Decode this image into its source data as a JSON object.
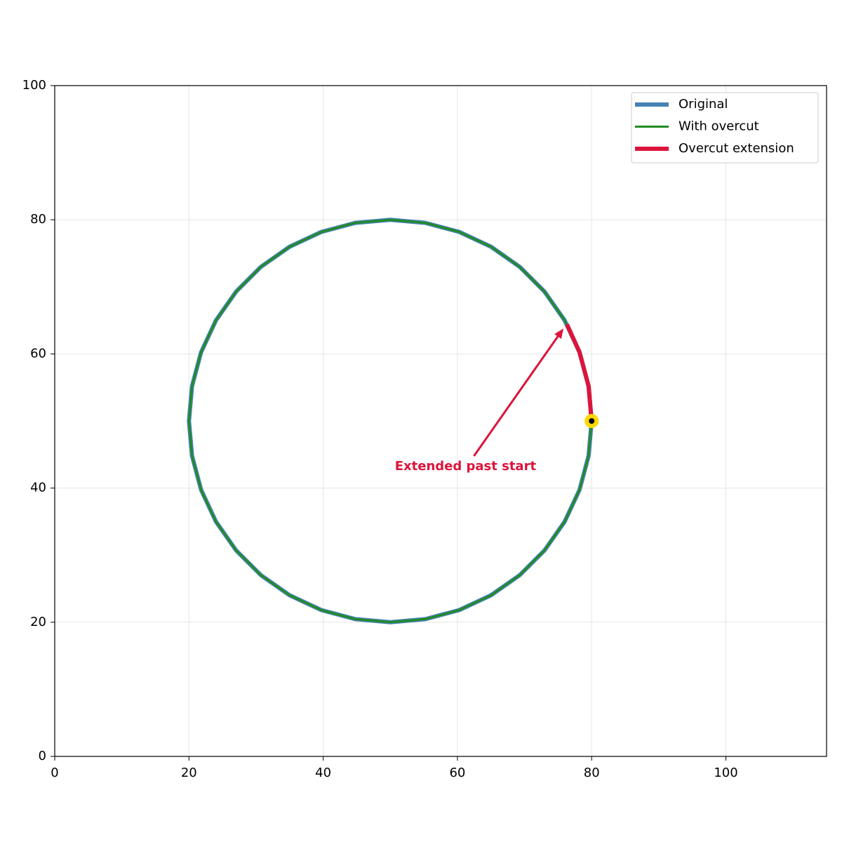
{
  "chart_data": {
    "type": "line",
    "xlim": [
      0,
      115
    ],
    "ylim": [
      0,
      100
    ],
    "xticks": [
      0,
      20,
      40,
      60,
      80,
      100
    ],
    "yticks": [
      0,
      20,
      40,
      60,
      80,
      100
    ],
    "grid": true,
    "legend": "upper right",
    "series": [
      {
        "name": "Original",
        "color": "#4682b4",
        "x": [
          80,
          79.54,
          78.19,
          75.98,
          72.98,
          69.28,
          65,
          60.26,
          55.21,
          50,
          44.79,
          39.74,
          35,
          30.72,
          27.02,
          24.02,
          21.81,
          20.46,
          20,
          20.46,
          21.81,
          24.02,
          27.02,
          30.72,
          35,
          39.74,
          44.79,
          50,
          55.21,
          60.26,
          65,
          69.28,
          72.98,
          75.98,
          78.19,
          79.54,
          80
        ],
        "values": [
          50,
          55.21,
          60.26,
          65,
          69.28,
          72.98,
          75.98,
          78.19,
          79.54,
          80,
          79.54,
          78.19,
          75.98,
          72.98,
          69.28,
          65,
          60.26,
          55.21,
          50,
          44.79,
          39.74,
          35,
          30.72,
          27.02,
          24.02,
          21.81,
          20.46,
          20,
          20.46,
          21.81,
          24.02,
          27.02,
          30.72,
          35,
          39.74,
          44.79,
          50
        ]
      },
      {
        "name": "With overcut",
        "color": "#228b22",
        "x": [
          80,
          79.54,
          78.19,
          75.98,
          72.98,
          69.28,
          65,
          60.26,
          55.21,
          50,
          44.79,
          39.74,
          35,
          30.72,
          27.02,
          24.02,
          21.81,
          20.46,
          20,
          20.46,
          21.81,
          24.02,
          27.02,
          30.72,
          35,
          39.74,
          44.79,
          50,
          55.21,
          60.26,
          65,
          69.28,
          72.98,
          75.98,
          78.19,
          79.54,
          80,
          79.54,
          78.19,
          76.33
        ],
        "values": [
          50,
          55.21,
          60.26,
          65,
          69.28,
          72.98,
          75.98,
          78.19,
          79.54,
          80,
          79.54,
          78.19,
          75.98,
          72.98,
          69.28,
          65,
          60.26,
          55.21,
          50,
          44.79,
          39.74,
          35,
          30.72,
          27.02,
          24.02,
          21.81,
          20.46,
          20,
          20.46,
          21.81,
          24.02,
          27.02,
          30.72,
          35,
          39.74,
          44.79,
          50,
          55.21,
          60.26,
          64.38
        ]
      },
      {
        "name": "Overcut extension",
        "color": "#dc143c",
        "x": [
          80,
          79.54,
          78.19,
          76.33
        ],
        "values": [
          50,
          55.21,
          60.26,
          64.38
        ]
      }
    ],
    "start_point": {
      "x": 80,
      "y": 50,
      "color": "#ffd700"
    },
    "annotation": {
      "text": "Extended past start",
      "color": "#dc143c",
      "xy": [
        75.8,
        63.8
      ],
      "xytext": [
        61.2,
        43.2
      ]
    }
  }
}
